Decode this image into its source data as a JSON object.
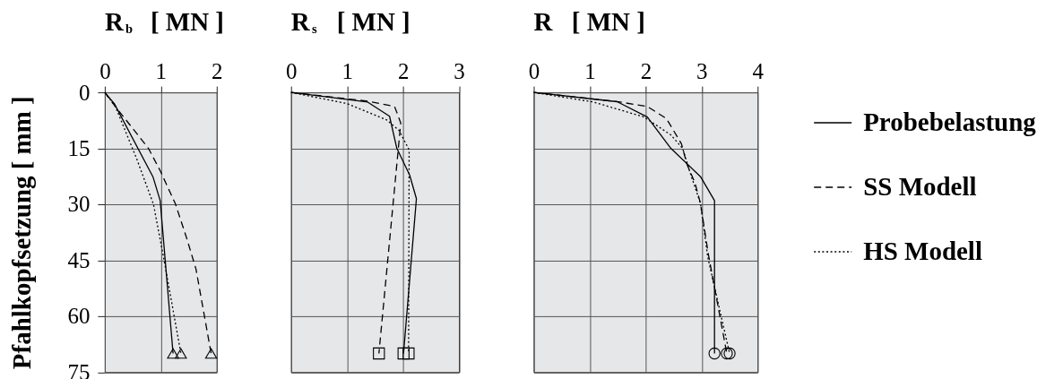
{
  "chart_data": [
    {
      "type": "line",
      "xlabel": "R$_{b}$  [ MN ]",
      "ylabel": "Pfahlkopfsetzung  [ mm ]",
      "xlim": [
        0,
        2
      ],
      "xticks": [
        0,
        1,
        2
      ],
      "ylim": [
        75,
        0
      ],
      "yticks": [
        0,
        15,
        30,
        45,
        60,
        75
      ],
      "grid": true,
      "series": [
        {
          "color": "#000000",
          "line_style": "solid",
          "x": [
            0,
            0.17,
            0.86,
            0.99,
            1.22
          ],
          "values": [
            0,
            3,
            22.6,
            29,
            70
          ]
        },
        {
          "color": "#000000",
          "line_style": "dashed",
          "x": [
            0,
            0.19,
            0.78,
            0.99,
            1.26,
            1.47,
            1.63,
            1.9
          ],
          "values": [
            0,
            3.8,
            15,
            21,
            29.8,
            39.4,
            47.4,
            70
          ]
        },
        {
          "color": "#000000",
          "line_style": "dotted",
          "x": [
            0,
            0.19,
            0.57,
            0.87,
            1.06,
            1.36
          ],
          "values": [
            0,
            3.8,
            17.8,
            30,
            45,
            70
          ]
        },
        {
          "type": "scatter",
          "marker": "triangle",
          "color": "#000000",
          "x": [
            1.22,
            1.9,
            1.36
          ],
          "values": [
            70,
            70,
            70
          ]
        }
      ]
    },
    {
      "type": "line",
      "xlabel": "R$_{s}$  [ MN ]",
      "xlim": [
        0,
        3
      ],
      "xticks": [
        0,
        1,
        2,
        3
      ],
      "ylim": [
        75,
        0
      ],
      "yticks": [
        0,
        15,
        30,
        45,
        60,
        75
      ],
      "grid": true,
      "tick_labels": "x",
      "series": [
        {
          "color": "#000000",
          "line_style": "solid",
          "x": [
            0,
            1.37,
            1.76,
            1.89,
            2.12,
            2.24,
            2.01
          ],
          "values": [
            0,
            2.6,
            6.4,
            15,
            22.2,
            28.5,
            70
          ]
        },
        {
          "color": "#000000",
          "line_style": "dashed",
          "x": [
            0,
            1.39,
            1.85,
            1.96,
            1.57
          ],
          "values": [
            0,
            2.4,
            3.8,
            8.2,
            70
          ]
        },
        {
          "color": "#000000",
          "line_style": "dotted",
          "x": [
            0,
            1.0,
            1.71,
            1.93,
            2.11,
            2.1
          ],
          "values": [
            0,
            3.0,
            7.4,
            10.2,
            15.4,
            70
          ]
        },
        {
          "type": "scatter",
          "marker": "square",
          "color": "#000000",
          "x": [
            2.01,
            1.57,
            2.1
          ],
          "values": [
            70,
            70,
            70
          ]
        }
      ]
    },
    {
      "type": "line",
      "xlabel": "R  [ MN ]",
      "xlim": [
        0,
        4
      ],
      "xticks": [
        0,
        1,
        2,
        3,
        4
      ],
      "ylim": [
        75,
        0
      ],
      "yticks": [
        0,
        15,
        30,
        45,
        60,
        75
      ],
      "grid": true,
      "tick_labels": "x",
      "legend": "right",
      "series": [
        {
          "name": "Probebelastung",
          "color": "#000000",
          "line_style": "solid",
          "x": [
            0,
            1.49,
            2.03,
            2.45,
            2.98,
            3.23,
            3.23
          ],
          "values": [
            0,
            2.5,
            6.6,
            15,
            22.6,
            29,
            70
          ]
        },
        {
          "name": "SS Modell",
          "color": "#000000",
          "line_style": "dashed",
          "x": [
            0,
            1.55,
            2.03,
            2.37,
            2.64,
            2.74,
            2.88,
            2.98,
            3.12,
            3.45
          ],
          "values": [
            0,
            2.6,
            3.8,
            7,
            13.8,
            19.4,
            24.2,
            29.8,
            43.4,
            70
          ]
        },
        {
          "name": "HS Modell",
          "color": "#000000",
          "line_style": "dotted",
          "x": [
            0,
            1.07,
            1.97,
            2.45,
            2.66,
            2.8,
            2.98,
            3.11,
            3.5
          ],
          "values": [
            0,
            2.6,
            6.6,
            11.4,
            15,
            21.8,
            29.8,
            44.2,
            70
          ]
        },
        {
          "type": "scatter",
          "marker": "circle",
          "color": "#000000",
          "x": [
            3.23,
            3.45,
            3.5
          ],
          "values": [
            70,
            70,
            70
          ]
        }
      ]
    }
  ]
}
